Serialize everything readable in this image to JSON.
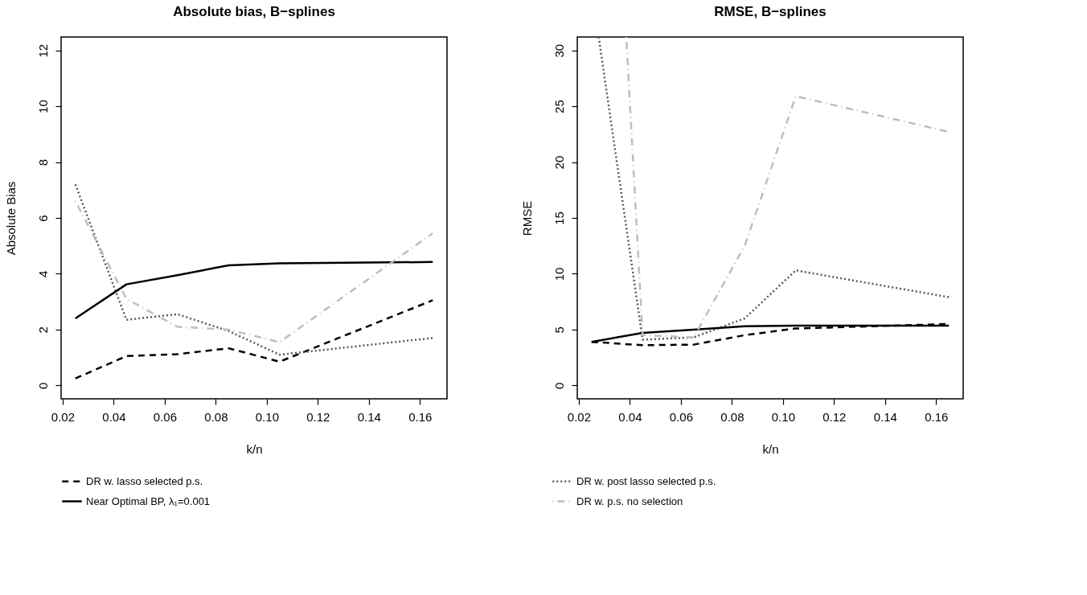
{
  "chart_data": [
    {
      "type": "line",
      "title": "Absolute bias, B−splines",
      "xlabel": "k/n",
      "ylabel": "Absolute Bias",
      "x": [
        0.025,
        0.045,
        0.065,
        0.085,
        0.105,
        0.165
      ],
      "xlim": [
        0.0194,
        0.1706
      ],
      "xticks": [
        {
          "value": 0.02,
          "label": "0.02"
        },
        {
          "value": 0.04,
          "label": "0.04"
        },
        {
          "value": 0.06,
          "label": "0.06"
        },
        {
          "value": 0.08,
          "label": "0.08"
        },
        {
          "value": 0.1,
          "label": "0.10"
        },
        {
          "value": 0.12,
          "label": "0.12"
        },
        {
          "value": 0.14,
          "label": "0.14"
        },
        {
          "value": 0.16,
          "label": "0.16"
        }
      ],
      "ylim": [
        -0.48,
        12.48
      ],
      "yticks": [
        0,
        2,
        4,
        6,
        8,
        10,
        12
      ],
      "grid": false,
      "legend": "bottom",
      "series": [
        {
          "name": "DR w. lasso selected p.s.",
          "color": "#000000",
          "line_style": "dashed",
          "values": [
            0.25,
            1.05,
            1.12,
            1.33,
            0.85,
            3.05
          ]
        },
        {
          "name": "DR w. post lasso selected p.s.",
          "color": "#595959",
          "line_style": "dotted",
          "values": [
            7.2,
            2.35,
            2.55,
            1.95,
            1.1,
            1.7
          ]
        },
        {
          "name": "Near Optimal BP, λ₁=0.001",
          "color": "#000000",
          "line_style": "solid",
          "values": [
            2.4,
            3.62,
            3.95,
            4.3,
            4.37,
            4.42
          ]
        },
        {
          "name": "DR w. p.s. no selection",
          "color": "#bebebe",
          "line_style": "dashdot",
          "values": [
            6.6,
            3.1,
            2.1,
            2.0,
            1.55,
            5.45
          ]
        }
      ]
    },
    {
      "type": "line",
      "title": "RMSE, B−splines",
      "xlabel": "k/n",
      "ylabel": "RMSE",
      "x": [
        0.025,
        0.045,
        0.065,
        0.085,
        0.105,
        0.165
      ],
      "xlim": [
        0.0194,
        0.1706
      ],
      "xticks": [
        {
          "value": 0.02,
          "label": "0.02"
        },
        {
          "value": 0.04,
          "label": "0.04"
        },
        {
          "value": 0.06,
          "label": "0.06"
        },
        {
          "value": 0.08,
          "label": "0.08"
        },
        {
          "value": 0.1,
          "label": "0.10"
        },
        {
          "value": 0.12,
          "label": "0.12"
        },
        {
          "value": 0.14,
          "label": "0.14"
        },
        {
          "value": 0.16,
          "label": "0.16"
        }
      ],
      "ylim": [
        -1.2,
        31.2
      ],
      "yticks": [
        0,
        5,
        10,
        15,
        20,
        25,
        30
      ],
      "grid": false,
      "legend": "bottom",
      "series": [
        {
          "name": "DR w. lasso selected p.s.",
          "color": "#000000",
          "line_style": "dashed",
          "values": [
            3.9,
            3.6,
            3.65,
            4.5,
            5.1,
            5.5
          ]
        },
        {
          "name": "DR w. post lasso selected p.s.",
          "color": "#595959",
          "line_style": "dotted",
          "x": [
            0.0278,
            0.045,
            0.065,
            0.085,
            0.105,
            0.165
          ],
          "values": [
            31.2,
            4.1,
            4.3,
            6.0,
            10.3,
            7.9
          ]
        },
        {
          "name": "Near Optimal BP, λ₁=0.001",
          "color": "#000000",
          "line_style": "solid",
          "values": [
            3.9,
            4.7,
            5.0,
            5.3,
            5.35,
            5.35
          ]
        },
        {
          "name": "DR w. p.s. no selection",
          "color": "#bebebe",
          "line_style": "dashdot",
          "x": [
            0.0386,
            0.045,
            0.065,
            0.085,
            0.105,
            0.165
          ],
          "values": [
            31.2,
            4.5,
            4.3,
            12.5,
            25.9,
            22.7
          ]
        }
      ]
    }
  ]
}
